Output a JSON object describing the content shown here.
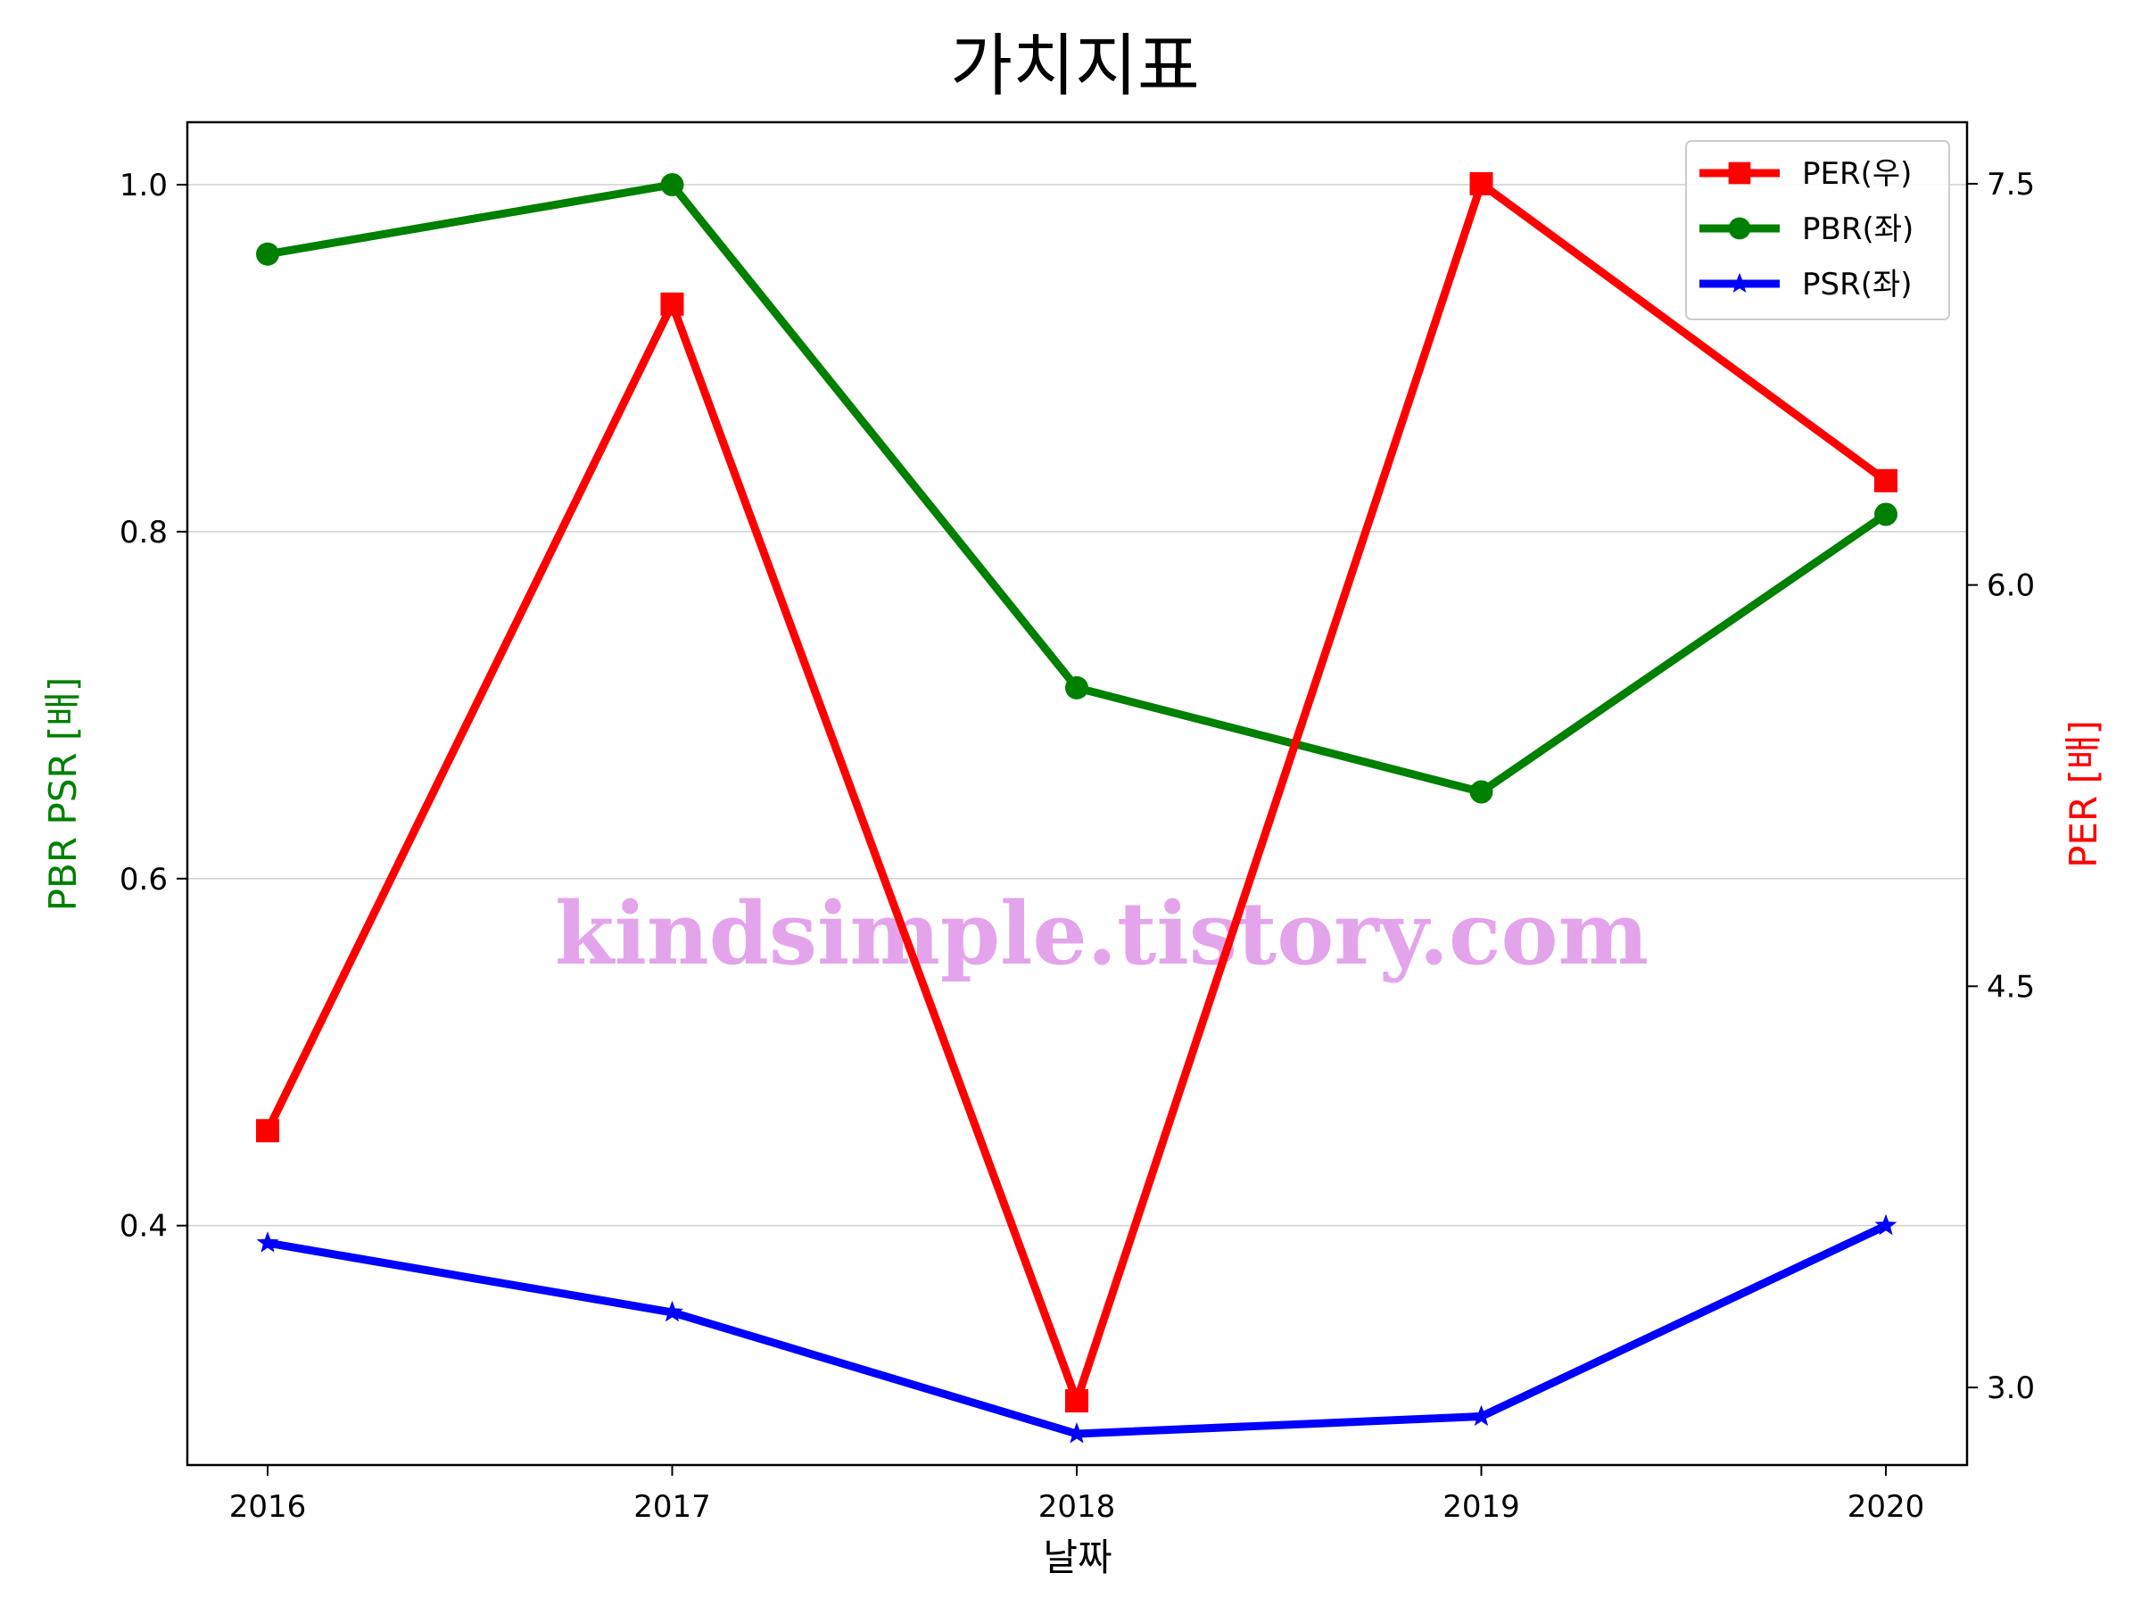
{
  "chart_data": {
    "type": "line",
    "title": "가치지표",
    "xlabel": "날짜",
    "ylabel_left": "PBR PSR [배]",
    "ylabel_right": "PER [배]",
    "categories": [
      "2016",
      "2017",
      "2018",
      "2019",
      "2020"
    ],
    "left_axis": {
      "ylim": [
        0.262,
        1.036
      ],
      "ticks": [
        "0.4",
        "0.6",
        "0.8",
        "1.0"
      ],
      "tick_values": [
        0.4,
        0.6,
        0.8,
        1.0
      ]
    },
    "right_axis": {
      "ylim": [
        2.71,
        7.73
      ],
      "ticks": [
        "3.0",
        "4.5",
        "6.0",
        "7.5"
      ],
      "tick_values": [
        3.0,
        4.5,
        6.0,
        7.5
      ]
    },
    "series": [
      {
        "name": "PER(우)",
        "axis": "right",
        "color": "#ff0000",
        "marker": "square",
        "values": [
          3.96,
          7.05,
          2.95,
          7.5,
          6.39
        ]
      },
      {
        "name": "PBR(좌)",
        "axis": "left",
        "color": "#008000",
        "marker": "circle",
        "values": [
          0.96,
          1.0,
          0.71,
          0.65,
          0.81
        ]
      },
      {
        "name": "PSR(좌)",
        "axis": "left",
        "color": "#0000ff",
        "marker": "star",
        "values": [
          0.39,
          0.35,
          0.28,
          0.29,
          0.4
        ]
      }
    ],
    "legend_position": "top-right",
    "grid": "horizontal",
    "watermark": "kindsimple.tistory.com"
  }
}
